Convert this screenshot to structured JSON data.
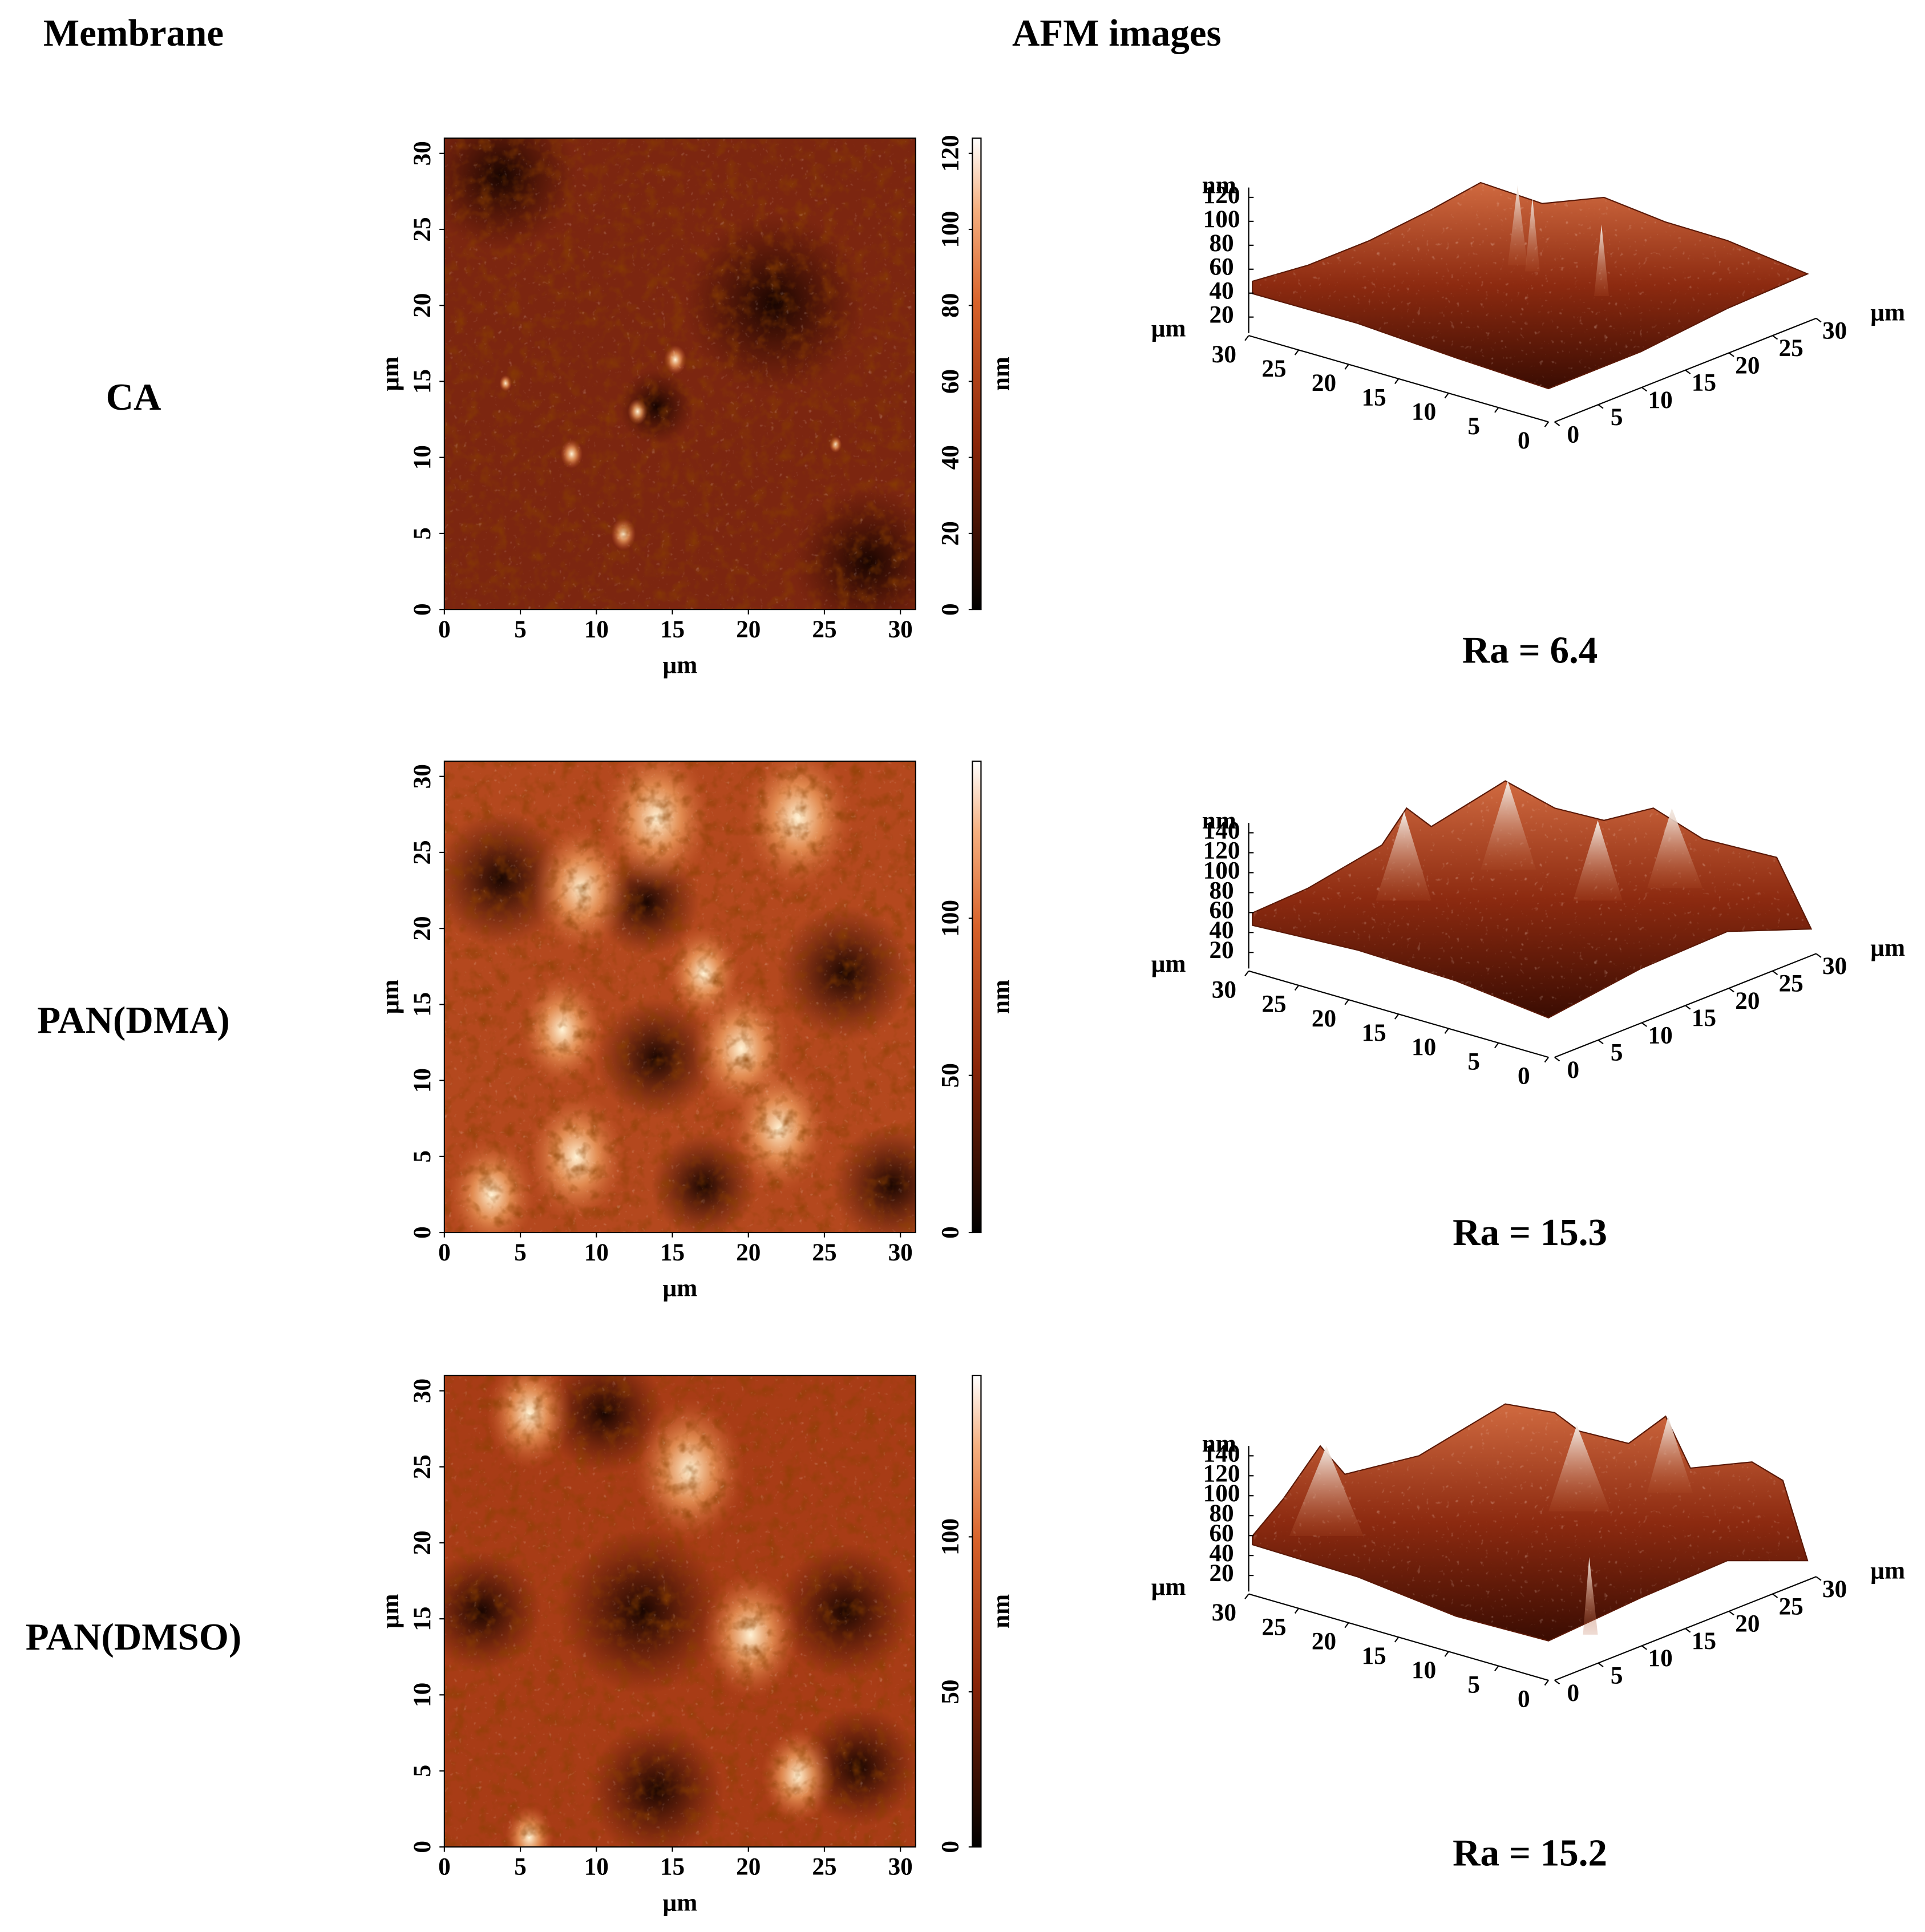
{
  "header": {
    "membrane": "Membrane",
    "afm": "AFM images"
  },
  "rows": [
    {
      "membrane": "CA",
      "map2d": {
        "xlabel": "µm",
        "ylabel": "µm",
        "xlim": [
          0,
          31
        ],
        "ylim": [
          0,
          31
        ],
        "xticks": [
          0,
          5,
          10,
          15,
          20,
          25,
          30
        ],
        "yticks": [
          0,
          5,
          10,
          15,
          20,
          25,
          30
        ],
        "colorbar": {
          "label": "nm",
          "lim": [
            0,
            124
          ],
          "ticks": [
            0,
            20,
            40,
            60,
            80,
            100,
            120
          ]
        }
      },
      "surface3d": {
        "zlabel": "nm",
        "xlabel": "µm",
        "ylabel": "µm",
        "zlim": [
          20,
          120
        ],
        "zticks": [
          20,
          40,
          60,
          80,
          100,
          120
        ],
        "xlim": [
          30,
          0
        ],
        "xticks": [
          30,
          25,
          20,
          15,
          10,
          5,
          0
        ],
        "ylim": [
          0,
          30
        ],
        "yticks": [
          0,
          5,
          10,
          15,
          20,
          25,
          30
        ]
      },
      "roughness": "Ra = 6.4"
    },
    {
      "membrane": "PAN(DMA)",
      "map2d": {
        "xlabel": "µm",
        "ylabel": "µm",
        "xlim": [
          0,
          31
        ],
        "ylim": [
          0,
          31
        ],
        "xticks": [
          0,
          5,
          10,
          15,
          20,
          25,
          30
        ],
        "yticks": [
          0,
          5,
          10,
          15,
          20,
          25,
          30
        ],
        "colorbar": {
          "label": "nm",
          "lim": [
            0,
            150
          ],
          "ticks": [
            0,
            50,
            100
          ]
        }
      },
      "surface3d": {
        "zlabel": "nm",
        "xlabel": "µm",
        "ylabel": "µm",
        "zlim": [
          20,
          140
        ],
        "zticks": [
          20,
          40,
          60,
          80,
          100,
          120,
          140
        ],
        "xlim": [
          30,
          0
        ],
        "xticks": [
          30,
          25,
          20,
          15,
          10,
          5,
          0
        ],
        "ylim": [
          0,
          30
        ],
        "yticks": [
          0,
          5,
          10,
          15,
          20,
          25,
          30
        ]
      },
      "roughness": "Ra = 15.3"
    },
    {
      "membrane": "PAN(DMSO)",
      "map2d": {
        "xlabel": "µm",
        "ylabel": "µm",
        "xlim": [
          0,
          31
        ],
        "ylim": [
          0,
          31
        ],
        "xticks": [
          0,
          5,
          10,
          15,
          20,
          25,
          30
        ],
        "yticks": [
          0,
          5,
          10,
          15,
          20,
          25,
          30
        ],
        "colorbar": {
          "label": "nm",
          "lim": [
            0,
            152
          ],
          "ticks": [
            0,
            50,
            100
          ]
        }
      },
      "surface3d": {
        "zlabel": "nm",
        "xlabel": "µm",
        "ylabel": "µm",
        "zlim": [
          20,
          140
        ],
        "zticks": [
          20,
          40,
          60,
          80,
          100,
          120,
          140
        ],
        "xlim": [
          30,
          0
        ],
        "xticks": [
          30,
          25,
          20,
          15,
          10,
          5,
          0
        ],
        "ylim": [
          0,
          30
        ],
        "yticks": [
          0,
          5,
          10,
          15,
          20,
          25,
          30
        ]
      },
      "roughness": "Ra = 15.2"
    }
  ]
}
